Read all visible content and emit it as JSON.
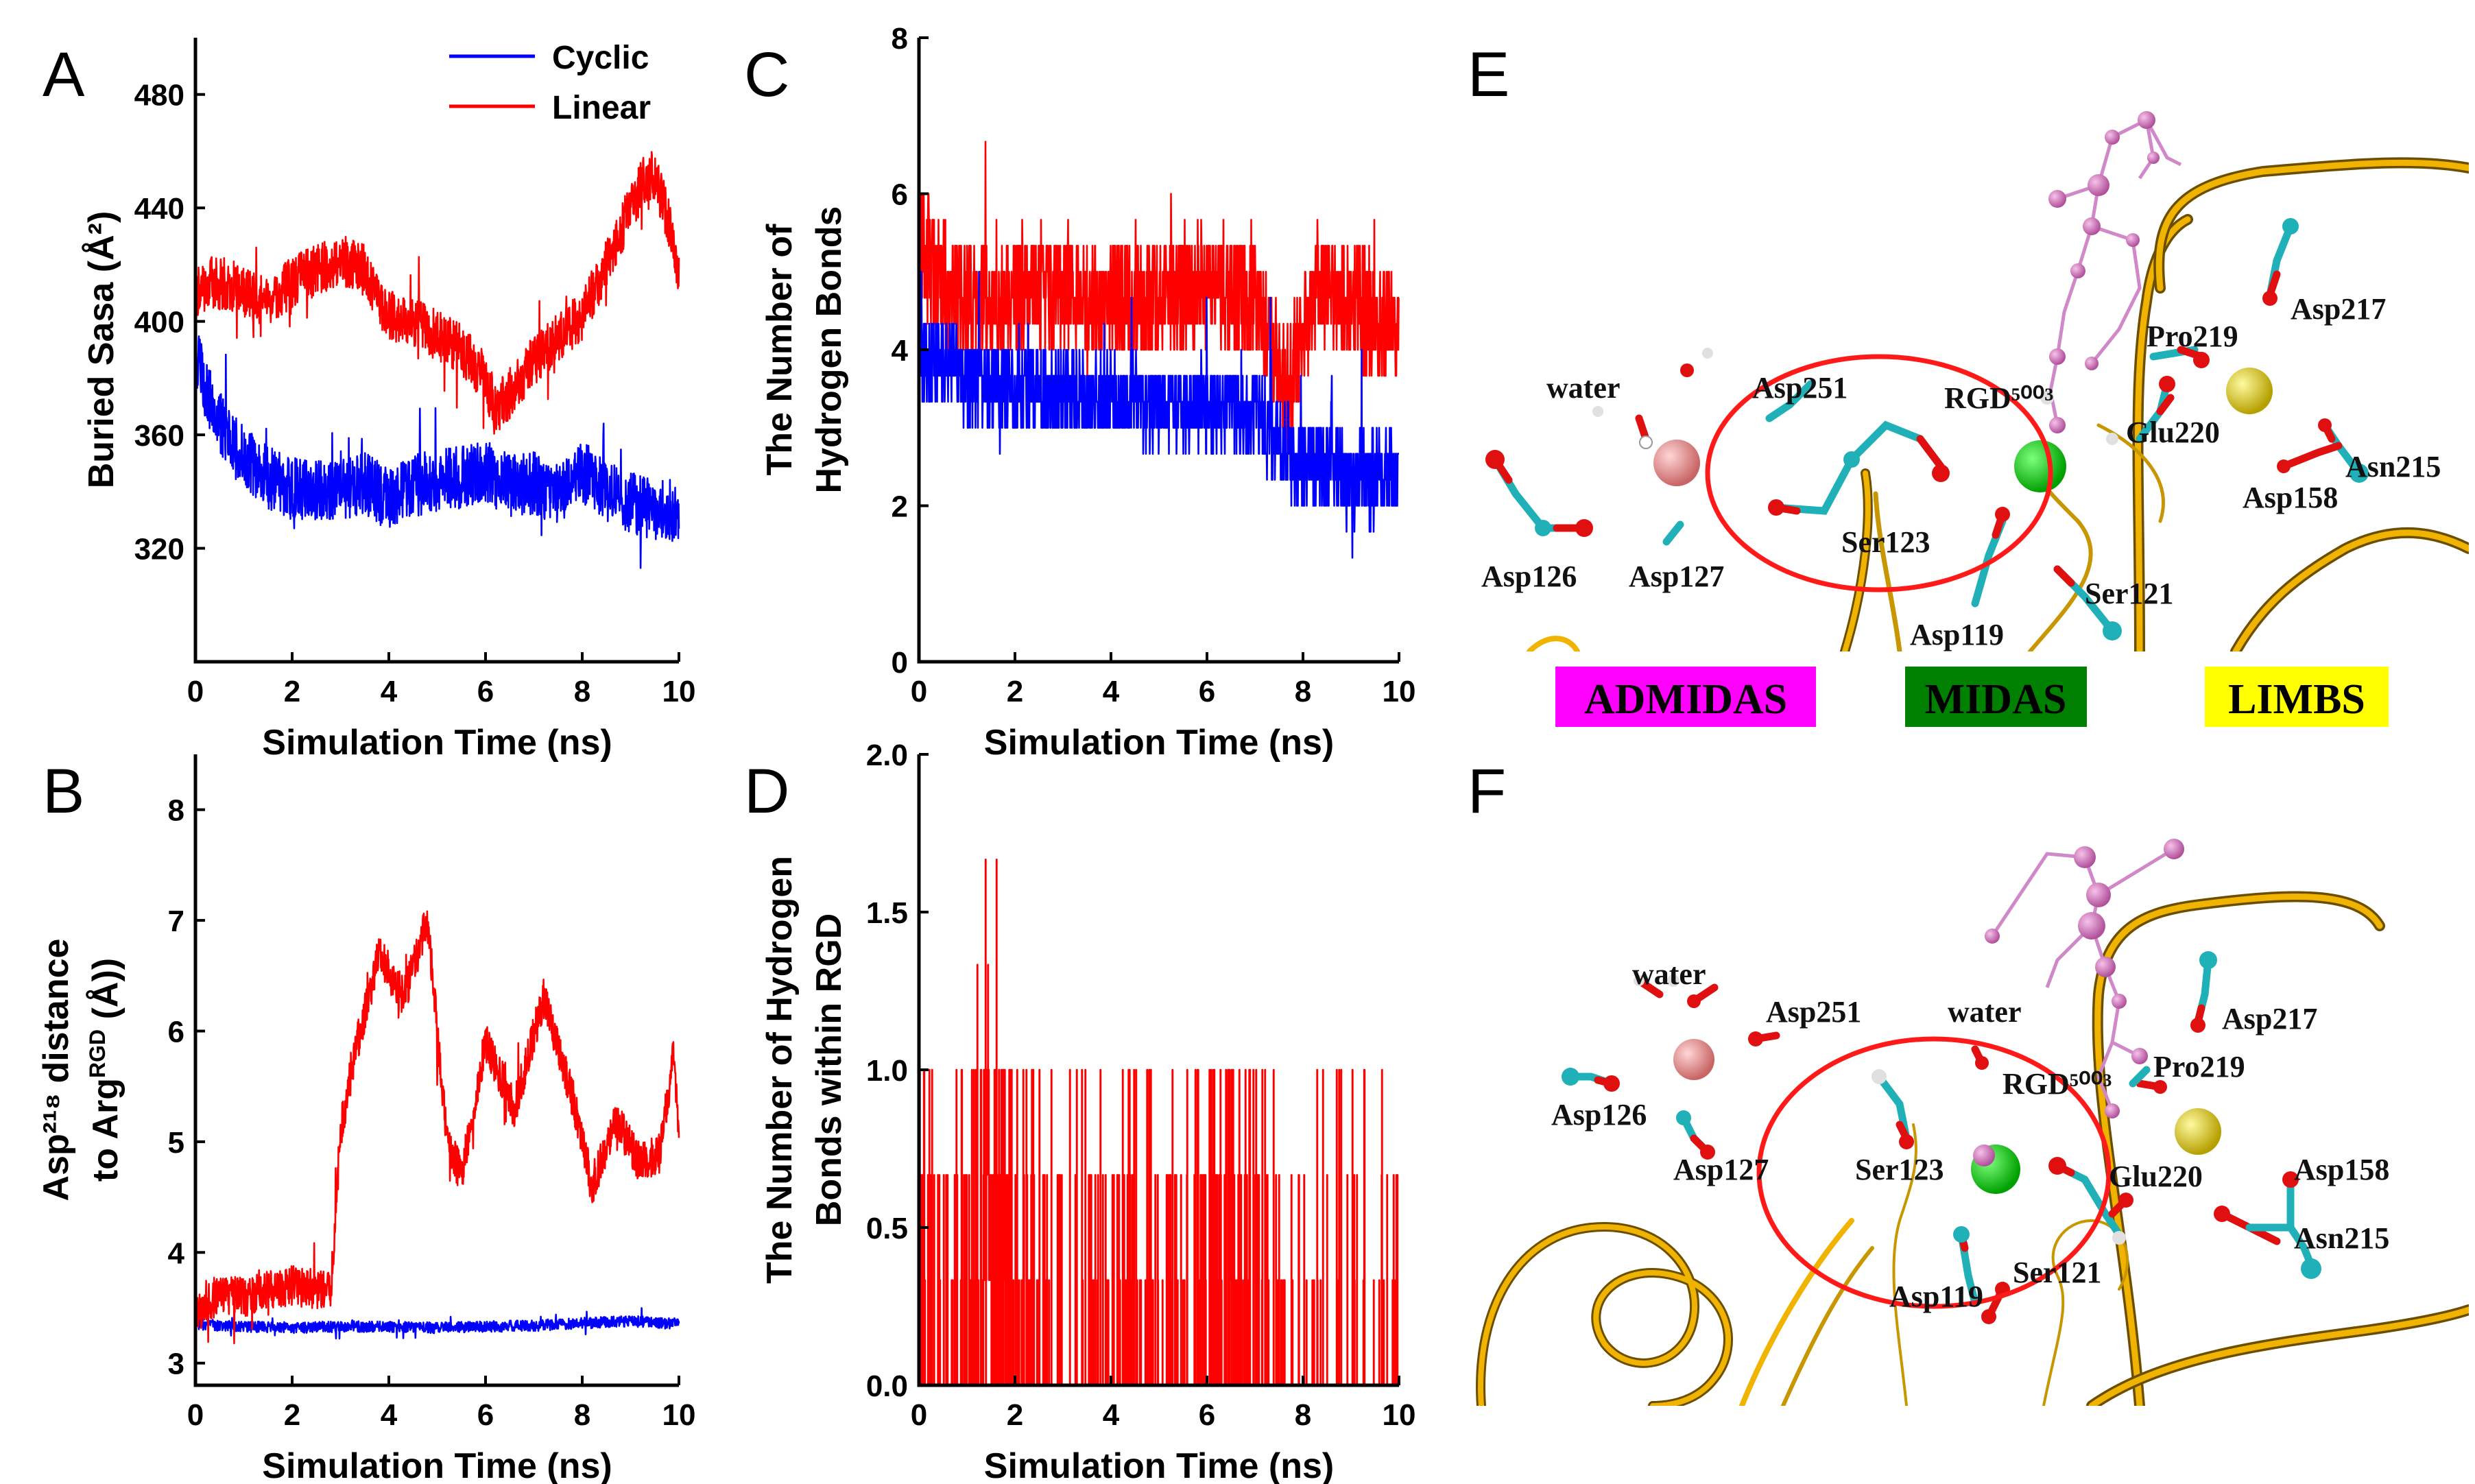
{
  "figure": {
    "panel_letters": [
      "A",
      "B",
      "C",
      "D",
      "E",
      "F"
    ],
    "legend": [
      {
        "name": "Cyclic",
        "color": "#0000ff"
      },
      {
        "name": "Linear",
        "color": "#ff0000"
      }
    ]
  },
  "chart_data": [
    {
      "panel": "A",
      "type": "line",
      "title": "",
      "xlabel": "Simulation Time (ns)",
      "ylabel": "Buried Sasa (Å²)",
      "xlim": [
        0,
        10
      ],
      "ylim": [
        280,
        500
      ],
      "xticks": [
        0,
        2,
        4,
        6,
        8,
        10
      ],
      "yticks": [
        320,
        360,
        400,
        440,
        480
      ],
      "series": [
        {
          "name": "Cyclic",
          "color": "#0000ff",
          "noise": 11,
          "x": [
            0,
            0.3,
            0.7,
            1,
            1.5,
            2,
            2.5,
            3,
            3.5,
            4,
            4.5,
            5,
            5.5,
            6,
            6.5,
            7,
            7.5,
            8,
            8.5,
            9,
            9.5,
            10
          ],
          "y": [
            388,
            372,
            358,
            352,
            345,
            341,
            340,
            340,
            343,
            337,
            342,
            344,
            345,
            347,
            342,
            343,
            339,
            347,
            340,
            336,
            334,
            333
          ]
        },
        {
          "name": "Linear",
          "color": "#ff0000",
          "noise": 9,
          "x": [
            0,
            0.3,
            0.7,
            1,
            1.5,
            2,
            2.5,
            3,
            3.5,
            4,
            4.5,
            5,
            5.5,
            6,
            6.2,
            6.5,
            7,
            7.5,
            8,
            8.5,
            9,
            9.3,
            9.5,
            9.8,
            10
          ],
          "y": [
            410,
            414,
            412,
            410,
            406,
            414,
            418,
            422,
            418,
            402,
            400,
            395,
            390,
            380,
            368,
            375,
            386,
            394,
            402,
            420,
            440,
            450,
            452,
            435,
            415
          ]
        }
      ]
    },
    {
      "panel": "B",
      "type": "line",
      "title": "",
      "xlabel": "Simulation Time (ns)",
      "ylabel": "Asp²¹⁸ distance to Arg^RGD (Å))",
      "xlim": [
        0,
        10
      ],
      "ylim": [
        2.8,
        8.5
      ],
      "xticks": [
        0,
        2,
        4,
        6,
        8,
        10
      ],
      "yticks": [
        3,
        4,
        5,
        6,
        7,
        8
      ],
      "series": [
        {
          "name": "Cyclic",
          "color": "#0000ff",
          "noise": 0.05,
          "x": [
            0,
            1,
            2,
            3,
            4,
            5,
            6,
            7,
            8,
            9,
            10
          ],
          "y": [
            3.35,
            3.33,
            3.32,
            3.33,
            3.33,
            3.32,
            3.33,
            3.34,
            3.36,
            3.38,
            3.35
          ]
        },
        {
          "name": "Linear",
          "color": "#ff0000",
          "noise": 0.18,
          "x": [
            0,
            0.4,
            1,
            2,
            2.8,
            3.0,
            3.3,
            3.8,
            4.3,
            4.8,
            5.2,
            5.5,
            6.0,
            6.6,
            7.2,
            7.8,
            8.2,
            8.7,
            9.2,
            9.6,
            9.9,
            10
          ],
          "y": [
            3.4,
            3.6,
            3.6,
            3.7,
            3.65,
            5.1,
            5.8,
            6.7,
            6.3,
            7.0,
            5.0,
            4.7,
            5.9,
            5.3,
            6.3,
            5.4,
            4.6,
            5.2,
            4.8,
            4.9,
            5.8,
            4.9
          ]
        }
      ]
    },
    {
      "panel": "C",
      "type": "line",
      "title": "",
      "xlabel": "Simulation Time (ns)",
      "ylabel": "The Number of Hydrogen Bonds",
      "xlim": [
        0,
        10
      ],
      "ylim": [
        0,
        8
      ],
      "xticks": [
        0,
        2,
        4,
        6,
        8,
        10
      ],
      "yticks": [
        0,
        2,
        4,
        6,
        8
      ],
      "series": [
        {
          "name": "Cyclic",
          "color": "#0000ff",
          "noise": 0.55,
          "x": [
            0,
            1,
            2,
            3,
            4,
            5,
            6,
            7,
            7.8,
            8.5,
            9,
            10
          ],
          "y": [
            4.0,
            3.6,
            3.5,
            3.4,
            3.4,
            3.3,
            3.3,
            3.2,
            2.6,
            2.5,
            2.3,
            2.4
          ]
        },
        {
          "name": "Linear",
          "color": "#ff0000",
          "noise": 0.75,
          "x": [
            0,
            0.5,
            1,
            2,
            3,
            4,
            5,
            6,
            7,
            7.7,
            8.3,
            9,
            10
          ],
          "y": [
            5.4,
            4.8,
            4.6,
            4.7,
            4.8,
            4.6,
            4.7,
            4.8,
            4.6,
            3.4,
            4.9,
            4.6,
            4.3
          ]
        }
      ]
    },
    {
      "panel": "D",
      "type": "line",
      "title": "",
      "xlabel": "Simulation Time (ns)",
      "ylabel": "The Number of Hydrogen Bonds within RGD",
      "xlim": [
        0,
        10
      ],
      "ylim": [
        0,
        2
      ],
      "xticks": [
        0,
        2,
        4,
        6,
        8,
        10
      ],
      "yticks": [
        0.0,
        0.5,
        1.0,
        1.5,
        2.0
      ],
      "series": [
        {
          "name": "Cyclic",
          "color": "#0000ff",
          "noise": 0,
          "x": [
            0,
            10
          ],
          "y": [
            0,
            0
          ]
        },
        {
          "name": "Linear",
          "color": "#ff0000",
          "noise": 0,
          "x": [
            0,
            0.5,
            1.2,
            1.5,
            1.8,
            2.2,
            3,
            4,
            4.5,
            5.5,
            6.5,
            7,
            8,
            9,
            10
          ],
          "y": [
            0.45,
            0.25,
            0.5,
            0.95,
            0.7,
            0.3,
            0.15,
            0.25,
            0.3,
            0.2,
            0.5,
            0.25,
            0.15,
            0.15,
            0.2
          ]
        }
      ]
    }
  ],
  "structures": {
    "E": {
      "labels": [
        "water",
        "Asp251",
        "RGD⁵⁰⁰³",
        "Pro219",
        "Asp217",
        "Glu220",
        "Asn215",
        "Asp158",
        "Asp126",
        "Asp127",
        "Ser123",
        "Ser121",
        "Asp119"
      ],
      "sites": [
        {
          "name": "ADMIDAS",
          "bg": "#ff00ff"
        },
        {
          "name": "MIDAS",
          "bg": "#008000"
        },
        {
          "name": "LIMBS",
          "bg": "#ffff00"
        }
      ]
    },
    "F": {
      "labels": [
        "water",
        "Asp251",
        "water",
        "RGD⁵⁰⁰³",
        "Pro219",
        "Asp217",
        "Asp126",
        "Asp127",
        "Ser123",
        "Glu220",
        "Asp158",
        "Asn215",
        "Asp119",
        "Ser121"
      ]
    }
  }
}
